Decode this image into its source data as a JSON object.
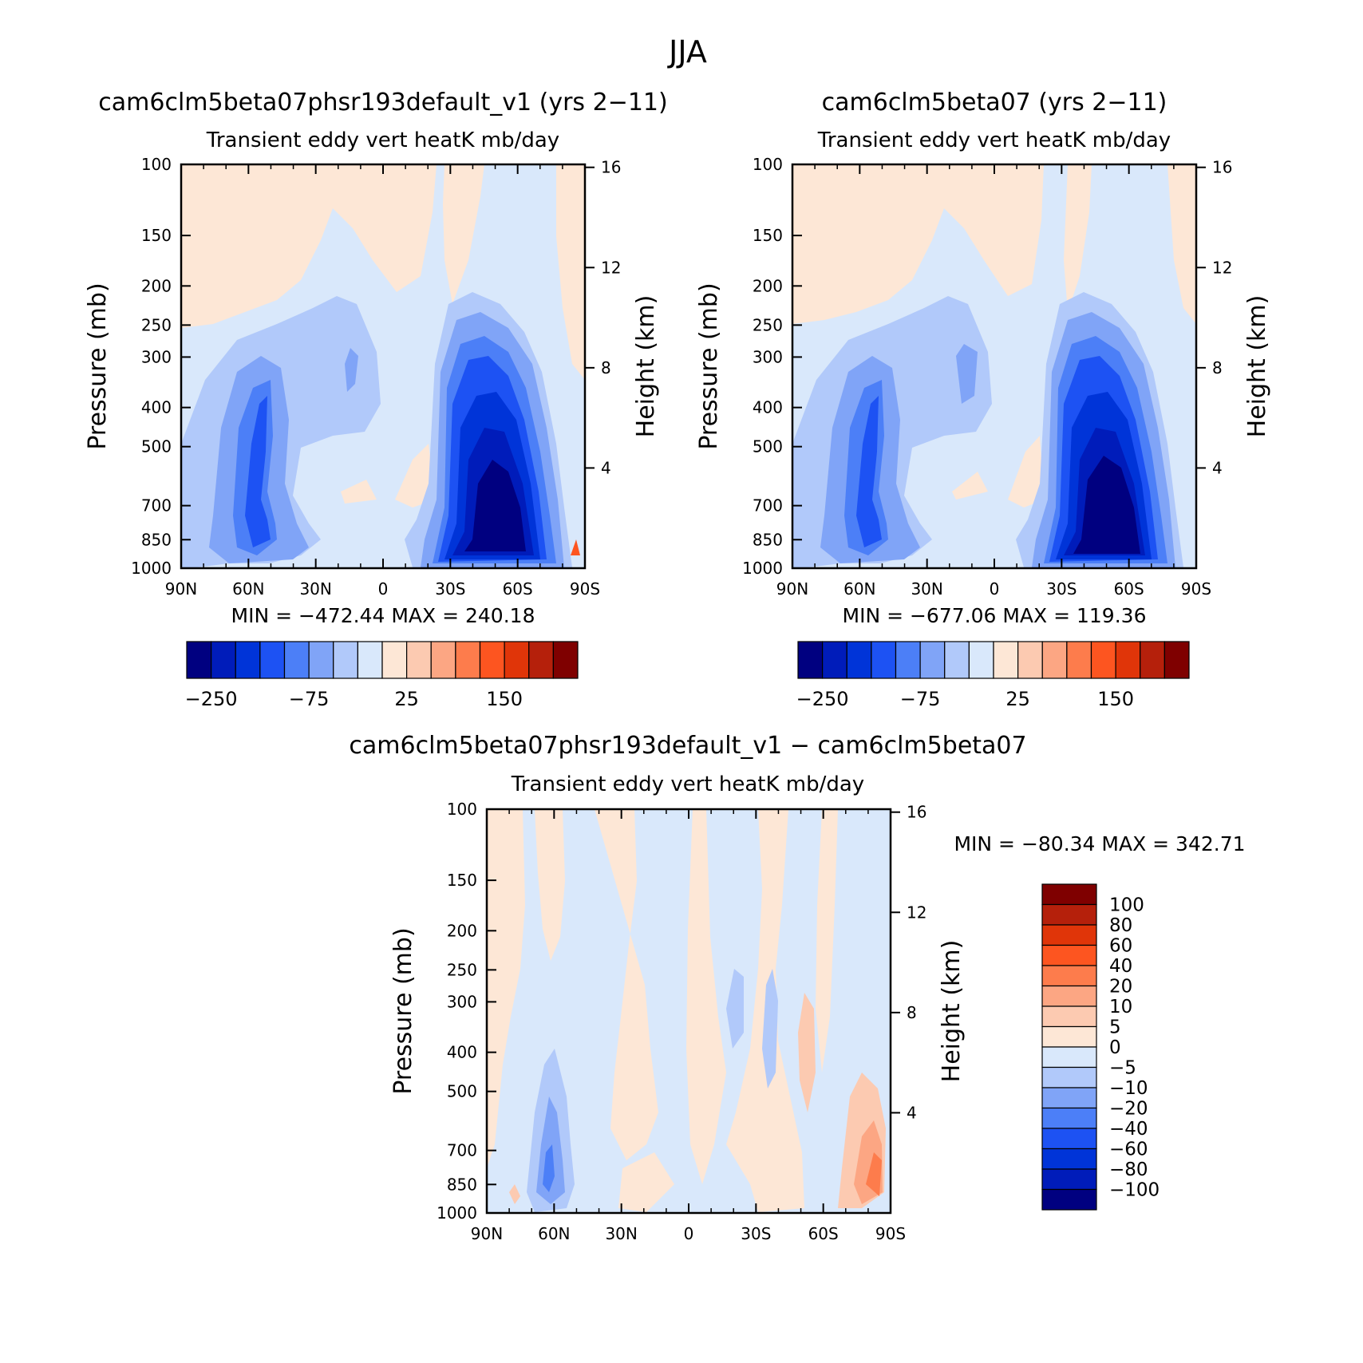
{
  "figure": {
    "title": "JJA"
  },
  "colors": {
    "full_palette": [
      "#000080",
      "#001cba",
      "#0034d8",
      "#1d52f3",
      "#4c7ff7",
      "#80a4f7",
      "#b1c9fa",
      "#d9e8fb",
      "#fde7d6",
      "#fccab1",
      "#fca683",
      "#fd7c4c",
      "#fd5520",
      "#e03509",
      "#b5200b",
      "#7f0000"
    ],
    "diff_palette": [
      "#000080",
      "#001cba",
      "#0034d8",
      "#1d52f3",
      "#4c7ff7",
      "#80a4f7",
      "#b1c9fa",
      "#d9e8fb",
      "#fde7d6",
      "#fccab1",
      "#fca683",
      "#fd7c4c",
      "#fd5520",
      "#e03509",
      "#b5200b",
      "#7f0000"
    ]
  },
  "panels": [
    {
      "title": "cam6clm5beta07phsr193default_v1 (yrs 2−11)",
      "subtitle": "Transient eddy vert heatK mb/day",
      "stats": "MIN = −472.44   MAX = 240.18"
    },
    {
      "title": "cam6clm5beta07 (yrs 2−11)",
      "subtitle": "Transient eddy vert heatK mb/day",
      "stats": "MIN = −677.06   MAX = 119.36"
    },
    {
      "title": "cam6clm5beta07phsr193default_v1 − cam6clm5beta07",
      "subtitle": "Transient eddy vert heatK mb/day",
      "stats": "MIN = −80.34   MAX = 342.71"
    }
  ],
  "axes": {
    "ylabel": "Pressure (mb)",
    "ylabel_right": "Height (km)",
    "x_ticks": [
      "90N",
      "60N",
      "30N",
      "0",
      "30S",
      "60S",
      "90S"
    ],
    "y_ticks": [
      "100",
      "150",
      "200",
      "250",
      "300",
      "400",
      "500",
      "700",
      "850",
      "1000"
    ],
    "height_ticks": [
      "16",
      "12",
      "8",
      "4"
    ]
  },
  "labelbars": {
    "full_labels": [
      "−250",
      "−75",
      "25",
      "150"
    ],
    "diff_labels": [
      "100",
      "80",
      "60",
      "40",
      "20",
      "10",
      "5",
      "0",
      "−5",
      "−10",
      "−20",
      "−40",
      "−60",
      "−80",
      "−100"
    ]
  },
  "chart_data": [
    {
      "type": "heatmap",
      "title": "cam6clm5beta07phsr193default_v1 (yrs 2−11)",
      "subtitle": "Transient eddy vert heatK mb/day",
      "x_range": [
        "90N",
        "90S"
      ],
      "y_range_mb": [
        100,
        1000
      ],
      "y_scale": "log",
      "min": -472.44,
      "max": 240.18,
      "levels_labeled": [
        -250,
        -75,
        25,
        150
      ],
      "features": [
        {
          "lat": 50,
          "pressure_mb": 800,
          "value": -200
        },
        {
          "lat": -50,
          "pressure_mb": 750,
          "value": -450
        },
        {
          "lat": 0,
          "pressure_mb": 300,
          "value": -5
        },
        {
          "lat": 45,
          "pressure_mb": 130,
          "value": 5
        }
      ]
    },
    {
      "type": "heatmap",
      "title": "cam6clm5beta07 (yrs 2−11)",
      "subtitle": "Transient eddy vert heatK mb/day",
      "x_range": [
        "90N",
        "90S"
      ],
      "y_range_mb": [
        100,
        1000
      ],
      "y_scale": "log",
      "min": -677.06,
      "max": 119.36,
      "levels_labeled": [
        -250,
        -75,
        25,
        150
      ],
      "features": [
        {
          "lat": 50,
          "pressure_mb": 800,
          "value": -210
        },
        {
          "lat": -50,
          "pressure_mb": 750,
          "value": -480
        },
        {
          "lat": 0,
          "pressure_mb": 300,
          "value": -5
        },
        {
          "lat": 45,
          "pressure_mb": 130,
          "value": 5
        }
      ]
    },
    {
      "type": "heatmap",
      "title": "cam6clm5beta07phsr193default_v1 − cam6clm5beta07",
      "subtitle": "Transient eddy vert heatK mb/day",
      "x_range": [
        "90N",
        "90S"
      ],
      "y_range_mb": [
        100,
        1000
      ],
      "y_scale": "log",
      "min": -80.34,
      "max": 342.71,
      "levels": [
        -100,
        -80,
        -60,
        -40,
        -20,
        -10,
        -5,
        0,
        5,
        10,
        20,
        40,
        60,
        80,
        100
      ],
      "features": [
        {
          "lat": 55,
          "pressure_mb": 750,
          "value": -15
        },
        {
          "lat": -80,
          "pressure_mb": 850,
          "value": 60
        },
        {
          "lat": -30,
          "pressure_mb": 400,
          "value": 3
        }
      ]
    }
  ]
}
